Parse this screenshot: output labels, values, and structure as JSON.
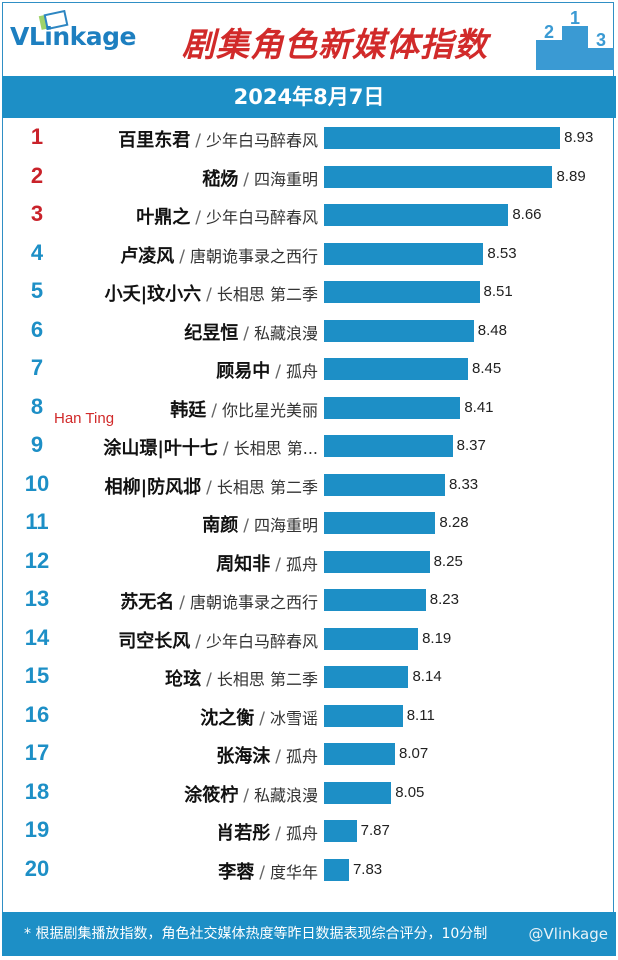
{
  "header": {
    "logo_text": "VLinkage",
    "title": "剧集角色新媒体指数",
    "date": "2024年8月7日"
  },
  "annotation": "Han Ting",
  "chart_data": {
    "type": "bar",
    "orientation": "horizontal",
    "title": "剧集角色新媒体指数",
    "subtitle": "2024年8月7日",
    "bar_color": "#1d8fc6",
    "top_rank_color": "#c9222a",
    "rows": [
      {
        "rank": "1",
        "name": "百里东君",
        "show": "少年白马醉春风",
        "value": 8.93
      },
      {
        "rank": "2",
        "name": "嵇炀",
        "show": "四海重明",
        "value": 8.89
      },
      {
        "rank": "3",
        "name": "叶鼎之",
        "show": "少年白马醉春风",
        "value": 8.66
      },
      {
        "rank": "4",
        "name": "卢凌风",
        "show": "唐朝诡事录之西行",
        "value": 8.53
      },
      {
        "rank": "5",
        "name": "小夭|玟小六",
        "show": "长相思 第二季",
        "value": 8.51
      },
      {
        "rank": "6",
        "name": "纪昱恒",
        "show": "私藏浪漫",
        "value": 8.48
      },
      {
        "rank": "7",
        "name": "顾易中",
        "show": "孤舟",
        "value": 8.45
      },
      {
        "rank": "8",
        "name": "韩廷",
        "show": "你比星光美丽",
        "value": 8.41
      },
      {
        "rank": "9",
        "name": "涂山璟|叶十七",
        "show": "长相思 第...",
        "value": 8.37
      },
      {
        "rank": "10",
        "name": "相柳|防风邶",
        "show": "长相思 第二季",
        "value": 8.33
      },
      {
        "rank": "11",
        "name": "南颜",
        "show": "四海重明",
        "value": 8.28
      },
      {
        "rank": "12",
        "name": "周知非",
        "show": "孤舟",
        "value": 8.25
      },
      {
        "rank": "13",
        "name": "苏无名",
        "show": "唐朝诡事录之西行",
        "value": 8.23
      },
      {
        "rank": "14",
        "name": "司空长风",
        "show": "少年白马醉春风",
        "value": 8.19
      },
      {
        "rank": "15",
        "name": "玱玹",
        "show": "长相思 第二季",
        "value": 8.14
      },
      {
        "rank": "16",
        "name": "沈之衡",
        "show": "冰雪谣",
        "value": 8.11
      },
      {
        "rank": "17",
        "name": "张海沫",
        "show": "孤舟",
        "value": 8.07
      },
      {
        "rank": "18",
        "name": "涂筱柠",
        "show": "私藏浪漫",
        "value": 8.05
      },
      {
        "rank": "19",
        "name": "肖若彤",
        "show": "孤舟",
        "value": 7.87
      },
      {
        "rank": "20",
        "name": "李蓉",
        "show": "度华年",
        "value": 7.83
      }
    ]
  },
  "footer": {
    "note": "* 根据剧集播放指数，角色社交媒体热度等昨日数据表现综合评分，10分制",
    "watermark": "@Vlinkage"
  }
}
